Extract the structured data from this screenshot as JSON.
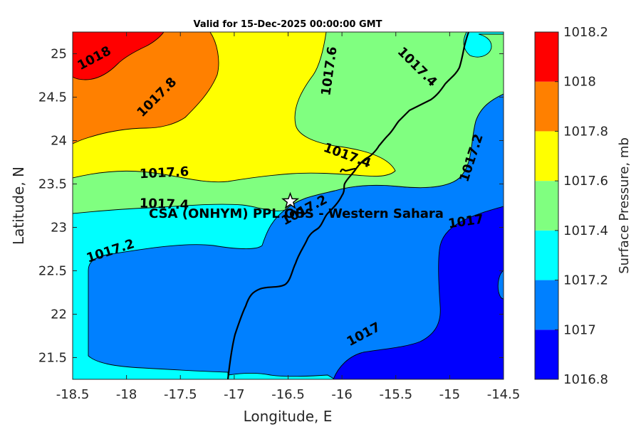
{
  "chart_data": {
    "type": "contour",
    "title": "Valid for 15-Dec-2025 00:00:00 GMT",
    "xlabel": "Longitude, E",
    "ylabel": "Latitude, N",
    "xlim": [
      -18.5,
      -14.5
    ],
    "ylim": [
      21.25,
      25.25
    ],
    "xticks": [
      "-18.5",
      "-18",
      "-17.5",
      "-17",
      "-16.5",
      "-16",
      "-15.5",
      "-15",
      "-14.5"
    ],
    "yticks": [
      "21.5",
      "22",
      "22.5",
      "23",
      "23.5",
      "24",
      "24.5",
      "25"
    ],
    "xtick_values": [
      -18.5,
      -18,
      -17.5,
      -17,
      -16.5,
      -16,
      -15.5,
      -15,
      -14.5
    ],
    "ytick_values": [
      21.5,
      22,
      22.5,
      23,
      23.5,
      24,
      24.5,
      25
    ],
    "colorbar": {
      "label": "Surface Pressure, mb",
      "ticks": [
        "1016.8",
        "1017",
        "1017.2",
        "1017.4",
        "1017.6",
        "1017.8",
        "1018",
        "1018.2"
      ],
      "levels": [
        1016.8,
        1017.0,
        1017.2,
        1017.4,
        1017.6,
        1017.8,
        1018.0,
        1018.2
      ],
      "colors": [
        "#0000ff",
        "#0080ff",
        "#00ffff",
        "#80ff80",
        "#ffff00",
        "#ff8000",
        "#ff0000",
        "#800000"
      ]
    },
    "contour_labels": [
      {
        "text": "1018",
        "lon": -18.3,
        "lat": 24.95
      },
      {
        "text": "1017.8",
        "lon": -17.72,
        "lat": 24.5
      },
      {
        "text": "1017.6",
        "lon": -16.12,
        "lat": 24.8
      },
      {
        "text": "1017.4",
        "lon": -15.3,
        "lat": 24.85
      },
      {
        "text": "1017.6",
        "lon": -17.65,
        "lat": 23.63
      },
      {
        "text": "1017.4",
        "lon": -17.65,
        "lat": 23.27
      },
      {
        "text": "1017.4",
        "lon": -15.95,
        "lat": 23.83
      },
      {
        "text": "1017.2",
        "lon": -16.35,
        "lat": 23.2
      },
      {
        "text": "1017.2",
        "lon": -14.8,
        "lat": 23.8
      },
      {
        "text": "1017.2",
        "lon": -18.15,
        "lat": 22.73
      },
      {
        "text": "1017",
        "lon": -14.85,
        "lat": 23.07
      },
      {
        "text": "1017",
        "lon": -15.8,
        "lat": 21.77
      }
    ],
    "station": {
      "label": "CSA (ONHYM) PPL OBS  - Western Sahara",
      "lon": -16.48,
      "lat": 23.3
    }
  }
}
